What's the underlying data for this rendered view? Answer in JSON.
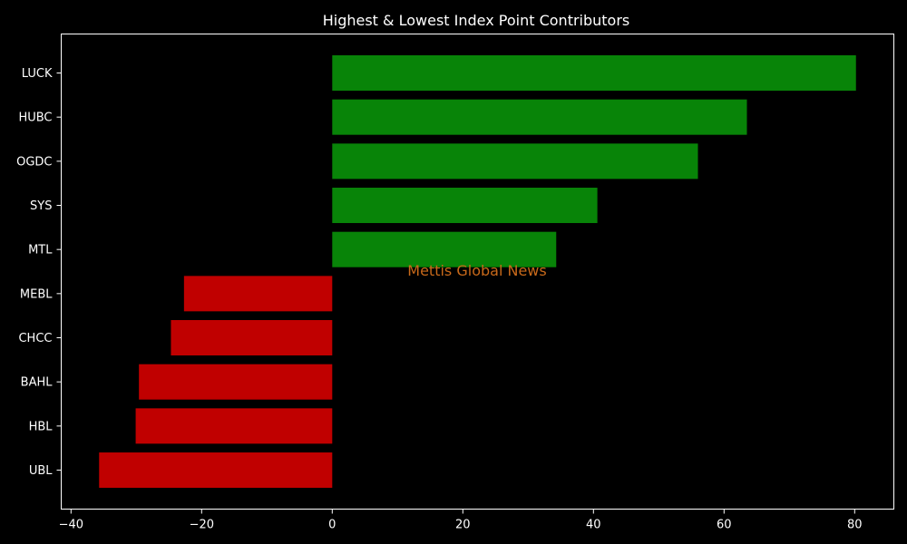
{
  "chart_data": {
    "type": "bar",
    "orientation": "horizontal",
    "title": "Highest & Lowest Index Point Contributors",
    "xlabel": "",
    "ylabel": "",
    "categories": [
      "LUCK",
      "HUBC",
      "OGDC",
      "SYS",
      "MTL",
      "MEBL",
      "CHCC",
      "BAHL",
      "HBL",
      "UBL"
    ],
    "values": [
      80.2,
      63.5,
      56.0,
      40.6,
      34.3,
      -22.7,
      -24.7,
      -29.6,
      -30.1,
      -35.7
    ],
    "xlim": [
      -41.5,
      86.0
    ],
    "xticks": [
      -40,
      -20,
      0,
      20,
      40,
      60,
      80
    ],
    "xtick_labels": [
      "−40",
      "−20",
      "0",
      "20",
      "40",
      "60",
      "80"
    ],
    "positive_color": "#088408",
    "negative_color": "#c00000",
    "grid": false,
    "watermark": "Mettis Global News",
    "watermark_color": "#c8691a"
  },
  "background_color": "#000000"
}
